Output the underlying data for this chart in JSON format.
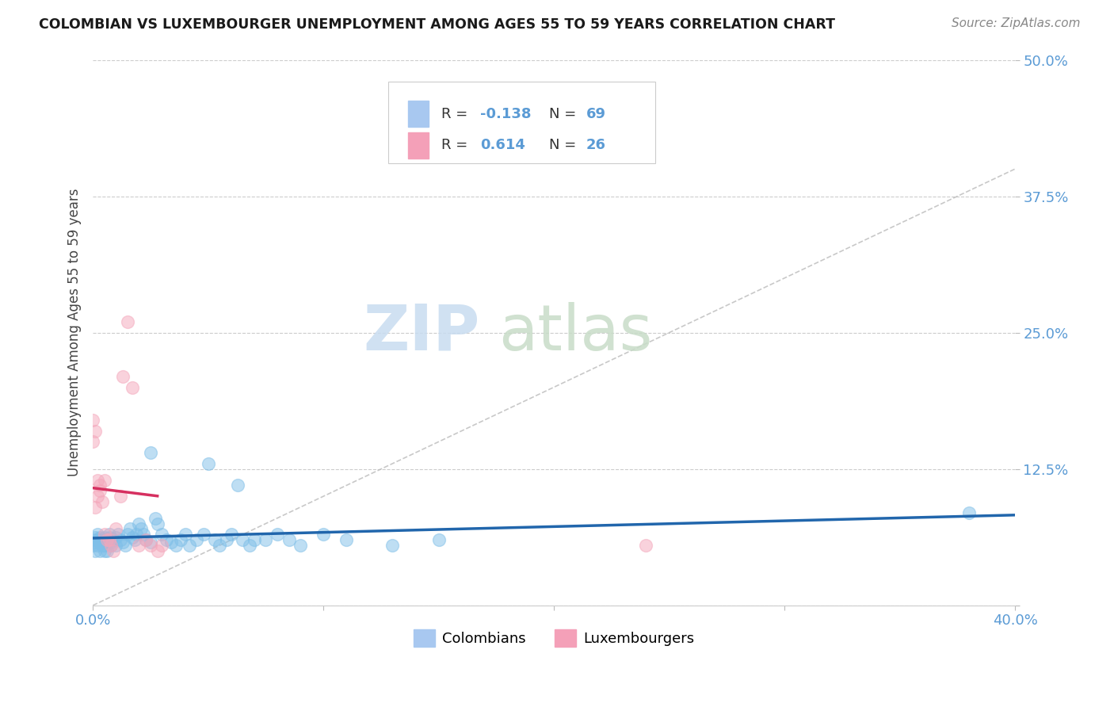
{
  "title": "COLOMBIAN VS LUXEMBOURGER UNEMPLOYMENT AMONG AGES 55 TO 59 YEARS CORRELATION CHART",
  "source": "Source: ZipAtlas.com",
  "ylabel_label": "Unemployment Among Ages 55 to 59 years",
  "xlim": [
    0.0,
    0.4
  ],
  "ylim": [
    0.0,
    0.5
  ],
  "col_R": -0.138,
  "col_N": 69,
  "lux_R": 0.614,
  "lux_N": 26,
  "colombians_x": [
    0.0,
    0.0,
    0.001,
    0.001,
    0.001,
    0.002,
    0.002,
    0.002,
    0.003,
    0.003,
    0.003,
    0.004,
    0.004,
    0.005,
    0.005,
    0.005,
    0.006,
    0.006,
    0.007,
    0.007,
    0.008,
    0.008,
    0.009,
    0.01,
    0.01,
    0.011,
    0.012,
    0.013,
    0.014,
    0.015,
    0.016,
    0.017,
    0.018,
    0.019,
    0.02,
    0.021,
    0.022,
    0.023,
    0.025,
    0.025,
    0.027,
    0.028,
    0.03,
    0.032,
    0.034,
    0.036,
    0.038,
    0.04,
    0.042,
    0.045,
    0.048,
    0.05,
    0.053,
    0.055,
    0.058,
    0.06,
    0.063,
    0.065,
    0.068,
    0.07,
    0.075,
    0.08,
    0.085,
    0.09,
    0.1,
    0.11,
    0.13,
    0.15,
    0.38
  ],
  "colombians_y": [
    0.06,
    0.055,
    0.058,
    0.05,
    0.062,
    0.065,
    0.06,
    0.055,
    0.058,
    0.062,
    0.05,
    0.055,
    0.06,
    0.062,
    0.055,
    0.05,
    0.058,
    0.05,
    0.065,
    0.062,
    0.058,
    0.055,
    0.06,
    0.062,
    0.055,
    0.065,
    0.06,
    0.058,
    0.055,
    0.065,
    0.07,
    0.062,
    0.06,
    0.065,
    0.075,
    0.07,
    0.065,
    0.06,
    0.058,
    0.14,
    0.08,
    0.075,
    0.065,
    0.06,
    0.058,
    0.055,
    0.06,
    0.065,
    0.055,
    0.06,
    0.065,
    0.13,
    0.06,
    0.055,
    0.06,
    0.065,
    0.11,
    0.06,
    0.055,
    0.06,
    0.06,
    0.065,
    0.06,
    0.055,
    0.065,
    0.06,
    0.055,
    0.06,
    0.085
  ],
  "luxembourgers_x": [
    0.0,
    0.0,
    0.001,
    0.001,
    0.002,
    0.002,
    0.003,
    0.003,
    0.004,
    0.005,
    0.005,
    0.006,
    0.007,
    0.008,
    0.009,
    0.01,
    0.012,
    0.013,
    0.015,
    0.017,
    0.02,
    0.023,
    0.025,
    0.028,
    0.03,
    0.24
  ],
  "luxembourgers_y": [
    0.17,
    0.15,
    0.16,
    0.09,
    0.115,
    0.1,
    0.11,
    0.105,
    0.095,
    0.115,
    0.065,
    0.06,
    0.06,
    0.055,
    0.05,
    0.07,
    0.1,
    0.21,
    0.26,
    0.2,
    0.055,
    0.06,
    0.055,
    0.05,
    0.055,
    0.055
  ],
  "col_color": "#7fbfe8",
  "lux_color": "#f4a7bb",
  "col_trend_color": "#2166ac",
  "lux_trend_color": "#d63060",
  "diagonal_color": "#bbbbbb",
  "background_color": "#ffffff",
  "grid_color": "#cccccc",
  "watermark_zip_color": "#c8dcf0",
  "watermark_atlas_color": "#c8dcc8"
}
